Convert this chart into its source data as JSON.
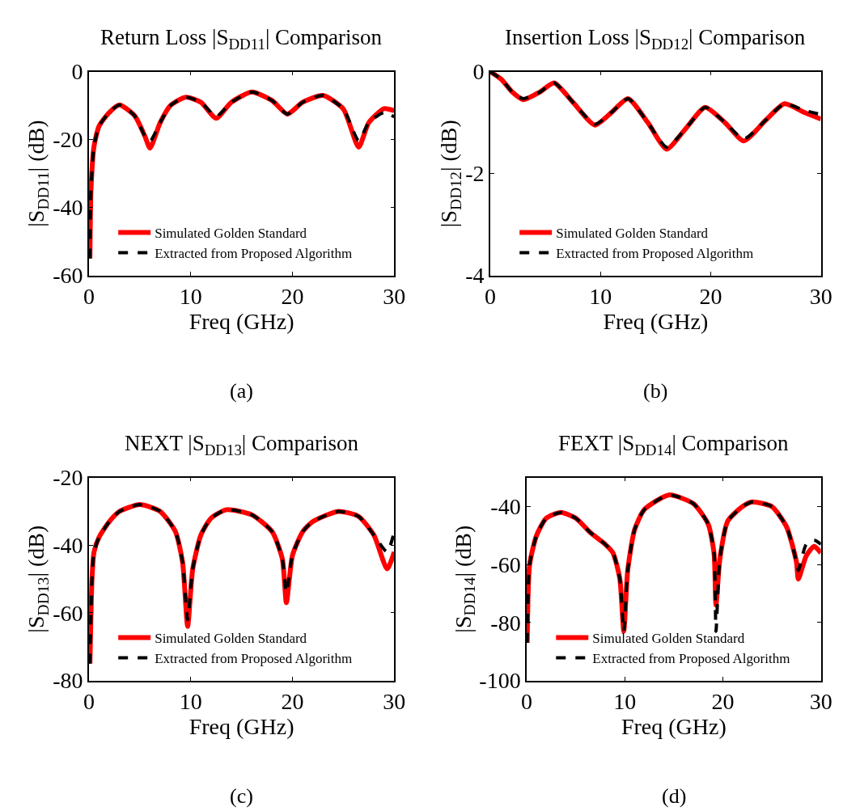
{
  "chart_data": [
    {
      "type": "line",
      "title": "Return Loss |S$_{DD11}$| Comparison",
      "xlabel": "Freq (GHz)",
      "ylabel": "|S$_{DD11}$| (dB)",
      "annotations": [
        "(a)"
      ],
      "xlim": [
        0,
        30
      ],
      "xticks": [
        0,
        10,
        20,
        30
      ],
      "ylim": [
        -60,
        0
      ],
      "yticks": [
        -60,
        -40,
        -20,
        0
      ],
      "legend": "bottom left",
      "x": [
        0.1,
        0.2,
        0.5,
        1,
        2,
        3,
        4.5,
        5.5,
        6,
        7,
        8,
        9.5,
        11,
        12.5,
        14,
        16,
        18,
        19.5,
        21,
        23,
        25,
        26.5,
        27.5,
        29,
        30
      ],
      "series": [
        {
          "name": "Simulated Golden Standard",
          "color": "#ff0000",
          "line_style": "solid",
          "values": [
            -55,
            -35,
            -22,
            -16,
            -12,
            -9.8,
            -13,
            -19,
            -22.5,
            -15,
            -10,
            -7.5,
            -9,
            -13.7,
            -9,
            -6,
            -8.5,
            -12.5,
            -9,
            -7,
            -11,
            -22.2,
            -15,
            -10.9,
            -11.5
          ]
        },
        {
          "name": "Extracted from Proposed Algorithm",
          "color": "#000000",
          "line_style": "dashed",
          "values": [
            -55,
            -35,
            -22,
            -16,
            -12,
            -9.8,
            -13,
            -19,
            -20.5,
            -15,
            -10,
            -7.5,
            -9,
            -13.2,
            -9,
            -6,
            -8.5,
            -12.5,
            -9,
            -7,
            -11,
            -20.3,
            -15,
            -12,
            -13.3
          ]
        }
      ]
    },
    {
      "type": "line",
      "title": "Insertion Loss |S$_{DD12}$| Comparison",
      "xlabel": "Freq (GHz)",
      "ylabel": "|S$_{DD12}$| (dB)",
      "annotations": [
        "(b)"
      ],
      "xlim": [
        0,
        30
      ],
      "xticks": [
        0,
        10,
        20,
        30
      ],
      "ylim": [
        -4,
        0
      ],
      "yticks": [
        -4,
        -2,
        0
      ],
      "legend": "bottom left",
      "x": [
        0,
        1,
        2,
        3,
        4.5,
        5.8,
        7.5,
        9.5,
        11,
        12.5,
        14.3,
        16,
        17.8,
        19.5,
        21.3,
        23,
        25,
        26.7,
        28.5,
        30
      ],
      "series": [
        {
          "name": "Simulated Golden Standard",
          "color": "#ff0000",
          "line_style": "solid",
          "values": [
            0,
            -0.15,
            -0.4,
            -0.55,
            -0.4,
            -0.22,
            -0.6,
            -1.05,
            -0.8,
            -0.53,
            -1.0,
            -1.52,
            -1.1,
            -0.7,
            -1.0,
            -1.36,
            -0.95,
            -0.63,
            -0.8,
            -0.93
          ]
        },
        {
          "name": "Extracted from Proposed Algorithm",
          "color": "#000000",
          "line_style": "dashed",
          "values": [
            0,
            -0.15,
            -0.4,
            -0.53,
            -0.4,
            -0.22,
            -0.6,
            -1.03,
            -0.8,
            -0.53,
            -1.0,
            -1.48,
            -1.1,
            -0.7,
            -1.0,
            -1.32,
            -0.95,
            -0.63,
            -0.76,
            -0.84
          ]
        }
      ]
    },
    {
      "type": "line",
      "title": "NEXT |S$_{DD13}$| Comparison",
      "xlabel": "Freq (GHz)",
      "ylabel": "|S$_{DD13}$| (dB)",
      "annotations": [
        "(c)"
      ],
      "xlim": [
        0,
        30
      ],
      "xticks": [
        0,
        10,
        20,
        30
      ],
      "ylim": [
        -80,
        -20
      ],
      "yticks": [
        -80,
        -60,
        -40,
        -20
      ],
      "legend": "bottom left",
      "x": [
        0.1,
        0.3,
        0.5,
        1,
        2,
        3,
        5,
        7,
        8.5,
        9.2,
        9.7,
        10.2,
        11,
        12,
        13.5,
        16,
        18,
        19,
        19.4,
        20,
        21,
        22,
        24.5,
        26.5,
        28,
        29.3,
        30
      ],
      "series": [
        {
          "name": "Simulated Golden Standard",
          "color": "#ff0000",
          "line_style": "solid",
          "values": [
            -75,
            -50,
            -42,
            -37.6,
            -33,
            -30,
            -28,
            -30,
            -36,
            -45,
            -64,
            -47,
            -37,
            -32,
            -29.5,
            -31,
            -36,
            -44,
            -57,
            -43,
            -36,
            -33,
            -30,
            -31.5,
            -37,
            -47,
            -42
          ]
        },
        {
          "name": "Extracted from Proposed Algorithm",
          "color": "#000000",
          "line_style": "dashed",
          "values": [
            -75,
            -50,
            -42,
            -37.6,
            -33,
            -30,
            -28,
            -30,
            -36,
            -45,
            -62,
            -47,
            -37,
            -32,
            -29.5,
            -31,
            -36,
            -44,
            -54,
            -43,
            -36,
            -33,
            -30,
            -31.5,
            -37,
            -42,
            -36
          ]
        }
      ]
    },
    {
      "type": "line",
      "title": "FEXT |S$_{DD14}$| Comparison",
      "xlabel": "Freq (GHz)",
      "ylabel": "|S$_{DD14}$| (dB)",
      "annotations": [
        "(d)"
      ],
      "xlim": [
        0,
        30
      ],
      "xticks": [
        0,
        10,
        20,
        30
      ],
      "ylim": [
        -100,
        -30
      ],
      "yticks": [
        -100,
        -80,
        -60,
        -40
      ],
      "legend": "bottom left",
      "x": [
        0.05,
        0.3,
        1,
        2,
        3.5,
        5,
        6.5,
        8,
        8.8,
        9.5,
        9.9,
        10.3,
        11,
        12,
        14.5,
        17,
        18.5,
        19.1,
        19.3,
        19.7,
        20.5,
        22,
        23,
        25,
        26.5,
        27.5,
        27.7,
        28.5,
        29.3,
        30
      ],
      "series": [
        {
          "name": "Simulated Golden Standard",
          "color": "#ff0000",
          "line_style": "solid",
          "values": [
            -87,
            -60,
            -50,
            -44,
            -42,
            -44,
            -49,
            -53,
            -56,
            -65,
            -83,
            -62,
            -48,
            -41,
            -36,
            -39,
            -46,
            -56,
            -74,
            -58,
            -45,
            -40,
            -38.4,
            -40,
            -47,
            -59,
            -65,
            -57,
            -53.7,
            -56
          ]
        },
        {
          "name": "Extracted from Proposed Algorithm",
          "color": "#000000",
          "line_style": "dashed",
          "values": [
            -87,
            -60,
            -50,
            -44,
            -42,
            -44,
            -49,
            -53,
            -56,
            -65,
            -83,
            -62,
            -48,
            -41,
            -36,
            -39,
            -46,
            -56,
            -83,
            -58,
            -45,
            -40,
            -38.4,
            -40,
            -47,
            -59,
            -62,
            -53,
            -51.6,
            -53
          ]
        }
      ]
    }
  ]
}
